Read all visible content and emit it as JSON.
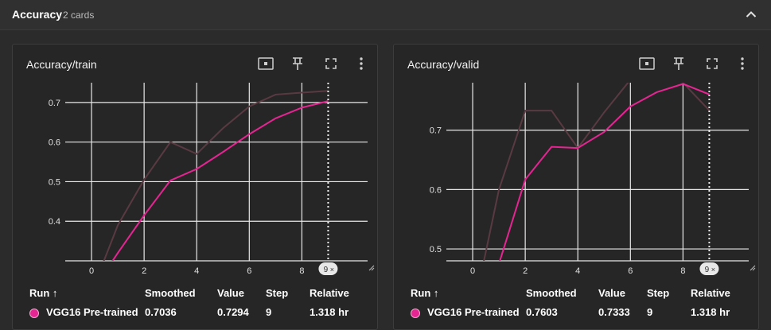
{
  "section": {
    "title": "Accuracy",
    "count_label": "2 cards"
  },
  "colors": {
    "run": "#e52592",
    "raw": "#5a3a42",
    "grid": "#e8e8e8",
    "bg": "#262626"
  },
  "legend_headers": {
    "run": "Run ↑",
    "smoothed": "Smoothed",
    "value": "Value",
    "step": "Step",
    "relative": "Relative"
  },
  "cards": [
    {
      "title": "Accuracy/train",
      "toolbar_icons": [
        "fit-domain-icon",
        "pin-icon",
        "fullscreen-icon",
        "more-vert-icon"
      ],
      "hover_step_badge": "9",
      "legend_row": {
        "run": "VGG16 Pre-trained",
        "smoothed": "0.7036",
        "value": "0.7294",
        "step": "9",
        "relative": "1.318 hr"
      }
    },
    {
      "title": "Accuracy/valid",
      "toolbar_icons": [
        "fit-domain-icon",
        "pin-icon",
        "fullscreen-icon",
        "more-vert-icon"
      ],
      "hover_step_badge": "9",
      "legend_row": {
        "run": "VGG16 Pre-trained",
        "smoothed": "0.7603",
        "value": "0.7333",
        "step": "9",
        "relative": "1.318 hr"
      }
    }
  ],
  "chart_data": [
    {
      "type": "line",
      "title": "Accuracy/train",
      "xlim": [
        -1,
        10.5
      ],
      "ylim": [
        0.3,
        0.75
      ],
      "x_ticks": [
        "0",
        "2",
        "4",
        "6",
        "8"
      ],
      "y_ticks": [
        "0.4",
        "0.5",
        "0.6",
        "0.7"
      ],
      "hover_x": 9,
      "series": [
        {
          "name": "VGG16 Pre-trained",
          "x": [
            0,
            1,
            2,
            3,
            4,
            5,
            6,
            7,
            8,
            9
          ],
          "values": [
            0.22,
            0.39,
            0.505,
            0.6,
            0.57,
            0.635,
            0.69,
            0.72,
            0.725,
            0.7294
          ],
          "smoothed": [
            0.22,
            0.32,
            0.415,
            0.503,
            0.532,
            0.575,
            0.62,
            0.66,
            0.687,
            0.7036
          ]
        }
      ]
    },
    {
      "type": "line",
      "title": "Accuracy/valid",
      "xlim": [
        -1,
        10.5
      ],
      "ylim": [
        0.48,
        0.78
      ],
      "x_ticks": [
        "0",
        "2",
        "4",
        "6",
        "8"
      ],
      "y_ticks": [
        "0.5",
        "0.6",
        "0.7"
      ],
      "hover_x": 9,
      "series": [
        {
          "name": "VGG16 Pre-trained",
          "x": [
            0,
            1,
            2,
            3,
            4,
            5,
            6,
            7,
            8,
            9
          ],
          "values": [
            0.39,
            0.6,
            0.733,
            0.733,
            0.67,
            0.73,
            0.785,
            0.8,
            0.78,
            0.7333
          ],
          "smoothed": [
            0.39,
            0.475,
            0.617,
            0.672,
            0.67,
            0.697,
            0.74,
            0.764,
            0.778,
            0.7603
          ]
        }
      ]
    }
  ]
}
